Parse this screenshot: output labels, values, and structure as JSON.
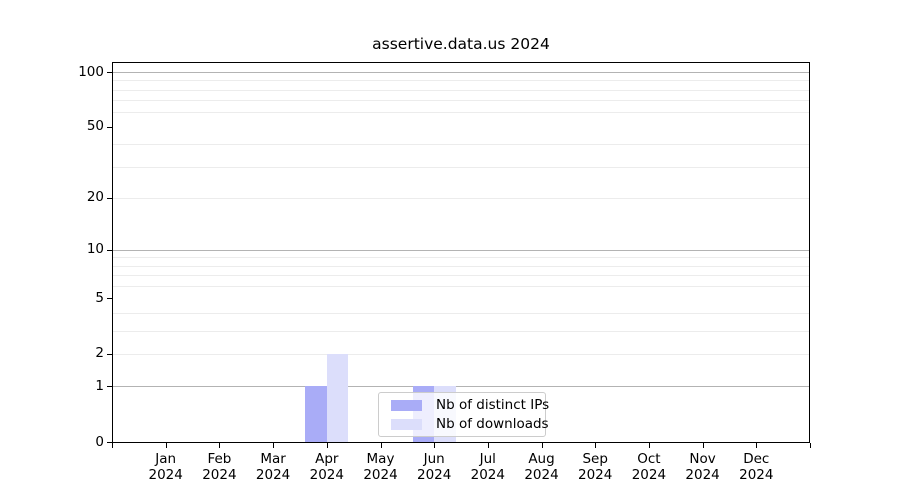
{
  "title": "assertive.data.us 2024",
  "colors": {
    "distinct_ips": "#a9acf7",
    "downloads": "#dcdefb",
    "grid_major": "#b3b3b3",
    "grid_minor": "#ececec",
    "spine": "#000000",
    "legend_border": "#cccccc"
  },
  "legend": {
    "items": [
      {
        "label": "Nb of distinct IPs"
      },
      {
        "label": "Nb of downloads"
      }
    ]
  },
  "chart_data": {
    "type": "bar",
    "title": "assertive.data.us 2024",
    "categories": [
      "Jan 2024",
      "Feb 2024",
      "Mar 2024",
      "Apr 2024",
      "May 2024",
      "Jun 2024",
      "Jul 2024",
      "Aug 2024",
      "Sep 2024",
      "Oct 2024",
      "Nov 2024",
      "Dec 2024"
    ],
    "series": [
      {
        "name": "Nb of distinct IPs",
        "color": "#a9acf7",
        "values": [
          0,
          0,
          0,
          1,
          0,
          1,
          0,
          0,
          0,
          0,
          0,
          0
        ]
      },
      {
        "name": "Nb of downloads",
        "color": "#dcdefb",
        "values": [
          0,
          0,
          0,
          2,
          0,
          1,
          0,
          0,
          0,
          0,
          0,
          0
        ]
      }
    ],
    "xlabel": "",
    "ylabel": "",
    "yscale": "log1p",
    "ylim": [
      0,
      112
    ],
    "ytick_labels": [
      100,
      50,
      20,
      10,
      5,
      2,
      1,
      0
    ],
    "grid_major_values": [
      1,
      10,
      100
    ],
    "grid_minor_values": [
      2,
      3,
      4,
      6,
      7,
      8,
      9,
      20,
      30,
      40,
      60,
      70,
      80,
      90
    ],
    "grid": true,
    "legend_position": "inside lower right"
  }
}
